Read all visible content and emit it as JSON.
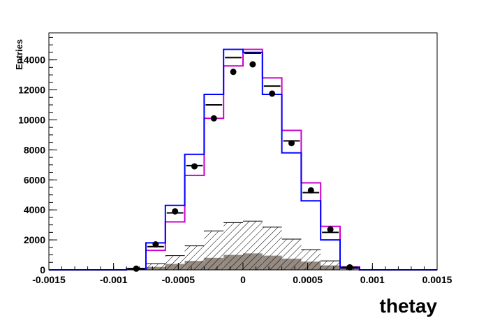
{
  "chart_data": {
    "type": "histogram",
    "xlabel": "thetay",
    "ylabel": "Entries",
    "xlim": [
      -0.0015,
      0.0015
    ],
    "ylim": [
      0,
      15800
    ],
    "x_ticks": [
      -0.0015,
      -0.001,
      -0.0005,
      0,
      0.0005,
      0.001,
      0.0015
    ],
    "x_tick_labels": [
      "-0.0015",
      "-0.001",
      "-0.0005",
      "0",
      "0.0005",
      "0.001",
      "0.0015"
    ],
    "y_ticks": [
      0,
      2000,
      4000,
      6000,
      8000,
      10000,
      12000,
      14000
    ],
    "y_tick_labels": [
      "0",
      "2000",
      "4000",
      "6000",
      "8000",
      "10000",
      "12000",
      "14000"
    ],
    "bin_edges": [
      -0.0009,
      -0.00075,
      -0.0006,
      -0.00045,
      -0.0003,
      -0.00015,
      0,
      0.00015,
      0.0003,
      0.00045,
      0.0006,
      0.00075,
      0.0009
    ],
    "bin_centers": [
      -0.000825,
      -0.000675,
      -0.000525,
      -0.000375,
      -0.000225,
      -7.5e-05,
      7.5e-05,
      0.000225,
      0.000375,
      0.000525,
      0.000675,
      0.000825
    ],
    "series": [
      {
        "kind": "filled-histogram",
        "color": "#958b82",
        "values": [
          20,
          200,
          400,
          600,
          800,
          1000,
          1100,
          950,
          750,
          550,
          300,
          30
        ]
      },
      {
        "kind": "hatched-histogram",
        "color": "#000000",
        "values": [
          60,
          420,
          950,
          1600,
          2600,
          3150,
          3250,
          2850,
          2050,
          1350,
          600,
          80
        ]
      },
      {
        "kind": "magenta-histogram",
        "color": "#cc00cc",
        "values": [
          80,
          1300,
          3200,
          6300,
          10100,
          13600,
          14700,
          12800,
          9300,
          5800,
          2900,
          200
        ]
      },
      {
        "kind": "blue-histogram",
        "color": "#0000ff",
        "values": [
          80,
          1800,
          4300,
          7700,
          11700,
          14700,
          14500,
          11700,
          7800,
          4600,
          2000,
          150
        ]
      },
      {
        "kind": "black-bin-markers",
        "color": "#000000",
        "values": [
          80,
          1550,
          3800,
          6950,
          11000,
          14150,
          14450,
          12250,
          8600,
          5150,
          2500,
          170
        ]
      },
      {
        "kind": "data-points",
        "color": "#000000",
        "values": [
          80,
          1700,
          3900,
          6900,
          10100,
          13200,
          13700,
          11750,
          8450,
          5300,
          2700,
          170
        ]
      }
    ]
  }
}
